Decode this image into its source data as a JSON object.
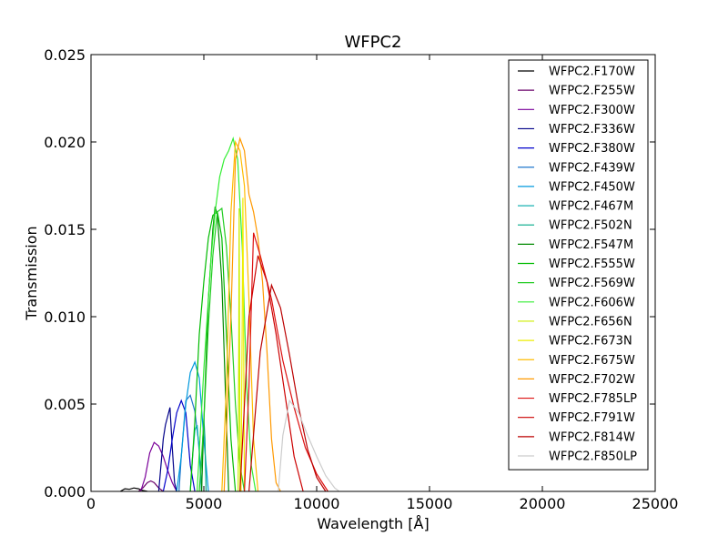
{
  "chart_data": {
    "type": "line",
    "title": "WFPC2",
    "xlabel": "Wavelength [Å]",
    "ylabel": "Transmission",
    "xlim": [
      0,
      25000
    ],
    "ylim": [
      0,
      0.025
    ],
    "xticks": [
      0,
      5000,
      10000,
      15000,
      20000,
      25000
    ],
    "xtick_labels": [
      "0",
      "5000",
      "10000",
      "15000",
      "20000",
      "25000"
    ],
    "yticks": [
      0,
      0.005,
      0.01,
      0.015,
      0.02,
      0.025
    ],
    "ytick_labels": [
      "0.000",
      "0.005",
      "0.010",
      "0.015",
      "0.020",
      "0.025"
    ],
    "grid": false,
    "legend_position": "top-right",
    "series": [
      {
        "name": "WFPC2.F170W",
        "color": "#000000",
        "x": [
          1300,
          1500,
          1700,
          1900,
          2100,
          2300,
          2500
        ],
        "y": [
          0,
          0.00015,
          0.00012,
          0.0002,
          0.00015,
          5e-05,
          0
        ]
      },
      {
        "name": "WFPC2.F255W",
        "color": "#6a006a",
        "x": [
          2100,
          2300,
          2500,
          2650,
          2800,
          3000,
          3200
        ],
        "y": [
          0,
          0.0002,
          0.0005,
          0.0006,
          0.0005,
          0.0002,
          0
        ]
      },
      {
        "name": "WFPC2.F300W",
        "color": "#7a0099",
        "x": [
          2200,
          2400,
          2600,
          2800,
          3000,
          3200,
          3400,
          3600,
          3800
        ],
        "y": [
          0,
          0.0008,
          0.0022,
          0.0028,
          0.0026,
          0.002,
          0.0012,
          0.0005,
          0
        ]
      },
      {
        "name": "WFPC2.F336W",
        "color": "#000088",
        "x": [
          3000,
          3100,
          3200,
          3300,
          3400,
          3500,
          3600,
          3700,
          3800
        ],
        "y": [
          0,
          0.0015,
          0.003,
          0.0038,
          0.0043,
          0.0048,
          0.0025,
          0.0005,
          0
        ]
      },
      {
        "name": "WFPC2.F380W",
        "color": "#0000cc",
        "x": [
          3200,
          3400,
          3600,
          3800,
          4000,
          4200,
          4400,
          4600
        ],
        "y": [
          0,
          0.0012,
          0.003,
          0.0045,
          0.0052,
          0.0045,
          0.0015,
          0
        ]
      },
      {
        "name": "WFPC2.F439W",
        "color": "#1f77cc",
        "x": [
          3900,
          4000,
          4200,
          4400,
          4600,
          4800,
          4900
        ],
        "y": [
          0,
          0.002,
          0.0052,
          0.0055,
          0.0046,
          0.0025,
          0
        ]
      },
      {
        "name": "WFPC2.F450W",
        "color": "#0099dd",
        "x": [
          3800,
          4000,
          4200,
          4400,
          4600,
          4800,
          5000,
          5200
        ],
        "y": [
          0,
          0.002,
          0.005,
          0.0068,
          0.0074,
          0.0065,
          0.003,
          0
        ]
      },
      {
        "name": "WFPC2.F467M",
        "color": "#00aaaa",
        "x": [
          4400,
          4500,
          4600,
          4700,
          4800,
          4900
        ],
        "y": [
          0,
          0.002,
          0.0035,
          0.0038,
          0.0022,
          0
        ]
      },
      {
        "name": "WFPC2.F502N",
        "color": "#00aa88",
        "x": [
          4900,
          4950,
          5000,
          5050,
          5100
        ],
        "y": [
          0,
          0.003,
          0.0042,
          0.003,
          0
        ]
      },
      {
        "name": "WFPC2.F547M",
        "color": "#008800",
        "x": [
          4900,
          5000,
          5200,
          5400,
          5500,
          5600,
          5800,
          6000,
          6100
        ],
        "y": [
          0,
          0.004,
          0.011,
          0.015,
          0.0163,
          0.0158,
          0.012,
          0.004,
          0
        ]
      },
      {
        "name": "WFPC2.F555W",
        "color": "#00bb00",
        "x": [
          4400,
          4600,
          4800,
          5000,
          5200,
          5400,
          5600,
          5800,
          6000,
          6200,
          6400
        ],
        "y": [
          0,
          0.004,
          0.009,
          0.012,
          0.0145,
          0.0158,
          0.016,
          0.0145,
          0.009,
          0.003,
          0
        ]
      },
      {
        "name": "WFPC2.F569W",
        "color": "#22cc22",
        "x": [
          4800,
          5000,
          5200,
          5400,
          5600,
          5800,
          6000,
          6200,
          6400,
          6600,
          6800
        ],
        "y": [
          0,
          0.004,
          0.0095,
          0.0135,
          0.016,
          0.0162,
          0.014,
          0.01,
          0.005,
          0.0015,
          0
        ]
      },
      {
        "name": "WFPC2.F606W",
        "color": "#33ee33",
        "x": [
          4700,
          5000,
          5300,
          5500,
          5700,
          5900,
          6100,
          6300,
          6500,
          6700,
          6900,
          7100,
          7300
        ],
        "y": [
          0,
          0.007,
          0.013,
          0.016,
          0.018,
          0.019,
          0.0195,
          0.0202,
          0.019,
          0.014,
          0.006,
          0.0015,
          0
        ]
      },
      {
        "name": "WFPC2.F656N",
        "color": "#ccee00",
        "x": [
          6520,
          6550,
          6565,
          6580,
          6610
        ],
        "y": [
          0,
          0.009,
          0.0162,
          0.009,
          0
        ]
      },
      {
        "name": "WFPC2.F673N",
        "color": "#eeee00",
        "x": [
          6650,
          6700,
          6730,
          6760,
          6800
        ],
        "y": [
          0,
          0.01,
          0.0168,
          0.01,
          0
        ]
      },
      {
        "name": "WFPC2.F675W",
        "color": "#ffbb00",
        "x": [
          5800,
          6000,
          6200,
          6400,
          6600,
          6800,
          7000,
          7200,
          7400
        ],
        "y": [
          0,
          0.006,
          0.016,
          0.02,
          0.0195,
          0.0175,
          0.011,
          0.003,
          0
        ]
      },
      {
        "name": "WFPC2.F702W",
        "color": "#ff9900",
        "x": [
          5900,
          6200,
          6400,
          6600,
          6800,
          7000,
          7200,
          7400,
          7600,
          7800,
          8000,
          8200,
          8400
        ],
        "y": [
          0,
          0.01,
          0.019,
          0.0202,
          0.0195,
          0.017,
          0.016,
          0.0145,
          0.012,
          0.008,
          0.003,
          0.0005,
          0
        ]
      },
      {
        "name": "WFPC2.F785LP",
        "color": "#dd1111",
        "x": [
          6800,
          7000,
          7200,
          7500,
          8000,
          8500,
          9000,
          9500,
          10000,
          10500
        ],
        "y": [
          0,
          0.006,
          0.0148,
          0.0135,
          0.011,
          0.0075,
          0.0048,
          0.0025,
          0.001,
          0
        ]
      },
      {
        "name": "WFPC2.F791W",
        "color": "#cc0000",
        "x": [
          6600,
          7000,
          7400,
          7800,
          8200,
          8600,
          9000,
          9400
        ],
        "y": [
          0,
          0.01,
          0.0135,
          0.012,
          0.009,
          0.0055,
          0.002,
          0
        ]
      },
      {
        "name": "WFPC2.F814W",
        "color": "#bb0000",
        "x": [
          7000,
          7500,
          8000,
          8400,
          8800,
          9200,
          9600,
          10000,
          10400
        ],
        "y": [
          0,
          0.008,
          0.0118,
          0.0105,
          0.0078,
          0.0048,
          0.0024,
          0.0008,
          0
        ]
      },
      {
        "name": "WFPC2.F850LP",
        "color": "#cccccc",
        "x": [
          8300,
          8500,
          8800,
          9200,
          9600,
          10000,
          10400,
          10800,
          11000
        ],
        "y": [
          0,
          0.0032,
          0.0052,
          0.0045,
          0.0032,
          0.002,
          0.0009,
          0.0002,
          0
        ]
      }
    ]
  }
}
